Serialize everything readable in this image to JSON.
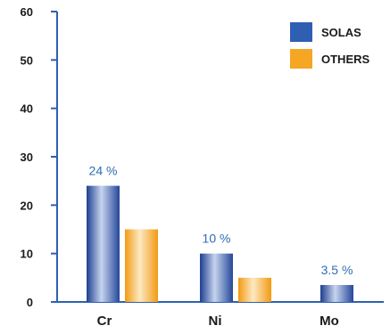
{
  "chart_data": {
    "type": "bar",
    "categories": [
      "Cr",
      "Ni",
      "Mo"
    ],
    "series": [
      {
        "name": "SOLAS",
        "values": [
          24,
          10,
          3.5
        ],
        "color": "#2f5fb3"
      },
      {
        "name": "OTHERS",
        "values": [
          15,
          5,
          null
        ],
        "color": "#f5a623"
      }
    ],
    "data_labels": [
      "24 %",
      "10 %",
      "3.5 %"
    ],
    "yticks": [
      0,
      10,
      20,
      30,
      40,
      50,
      60
    ],
    "ylim": [
      0,
      60
    ],
    "title": "",
    "xlabel": "",
    "ylabel": "",
    "legend": {
      "position": "top-right",
      "entries": [
        "SOLAS",
        "OTHERS"
      ]
    },
    "grid": false
  }
}
